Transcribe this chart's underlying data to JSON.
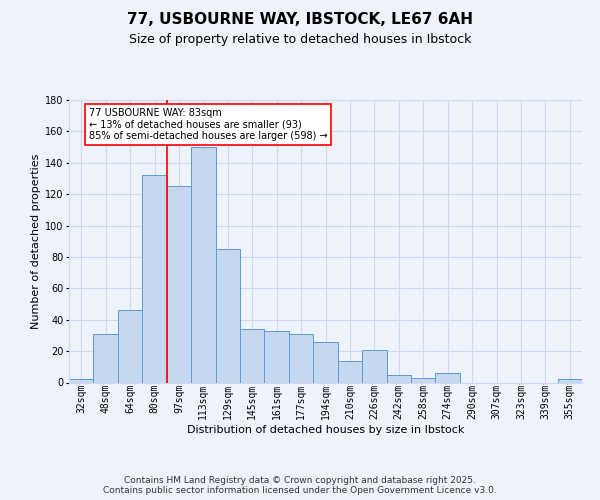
{
  "title": "77, USBOURNE WAY, IBSTOCK, LE67 6AH",
  "subtitle": "Size of property relative to detached houses in Ibstock",
  "xlabel": "Distribution of detached houses by size in Ibstock",
  "ylabel": "Number of detached properties",
  "categories": [
    "32sqm",
    "48sqm",
    "64sqm",
    "80sqm",
    "97sqm",
    "113sqm",
    "129sqm",
    "145sqm",
    "161sqm",
    "177sqm",
    "194sqm",
    "210sqm",
    "226sqm",
    "242sqm",
    "258sqm",
    "274sqm",
    "290sqm",
    "307sqm",
    "323sqm",
    "339sqm",
    "355sqm"
  ],
  "values": [
    2,
    31,
    46,
    132,
    125,
    150,
    85,
    34,
    33,
    31,
    26,
    14,
    21,
    5,
    3,
    6,
    0,
    0,
    0,
    0,
    2
  ],
  "bar_color": "#c5d8f0",
  "bar_edge_color": "#5b9bd5",
  "vline_x": 3.5,
  "vline_color": "red",
  "annotation_text": "77 USBOURNE WAY: 83sqm\n← 13% of detached houses are smaller (93)\n85% of semi-detached houses are larger (598) →",
  "annotation_box_color": "white",
  "annotation_box_edge": "red",
  "footer": "Contains HM Land Registry data © Crown copyright and database right 2025.\nContains public sector information licensed under the Open Government Licence v3.0.",
  "ylim": [
    0,
    180
  ],
  "background_color": "#eef2fb",
  "grid_color": "#d0d8ee",
  "title_fontsize": 11,
  "subtitle_fontsize": 9,
  "ylabel_fontsize": 8,
  "xlabel_fontsize": 8,
  "tick_fontsize": 7,
  "footer_fontsize": 6.5,
  "annot_fontsize": 7
}
